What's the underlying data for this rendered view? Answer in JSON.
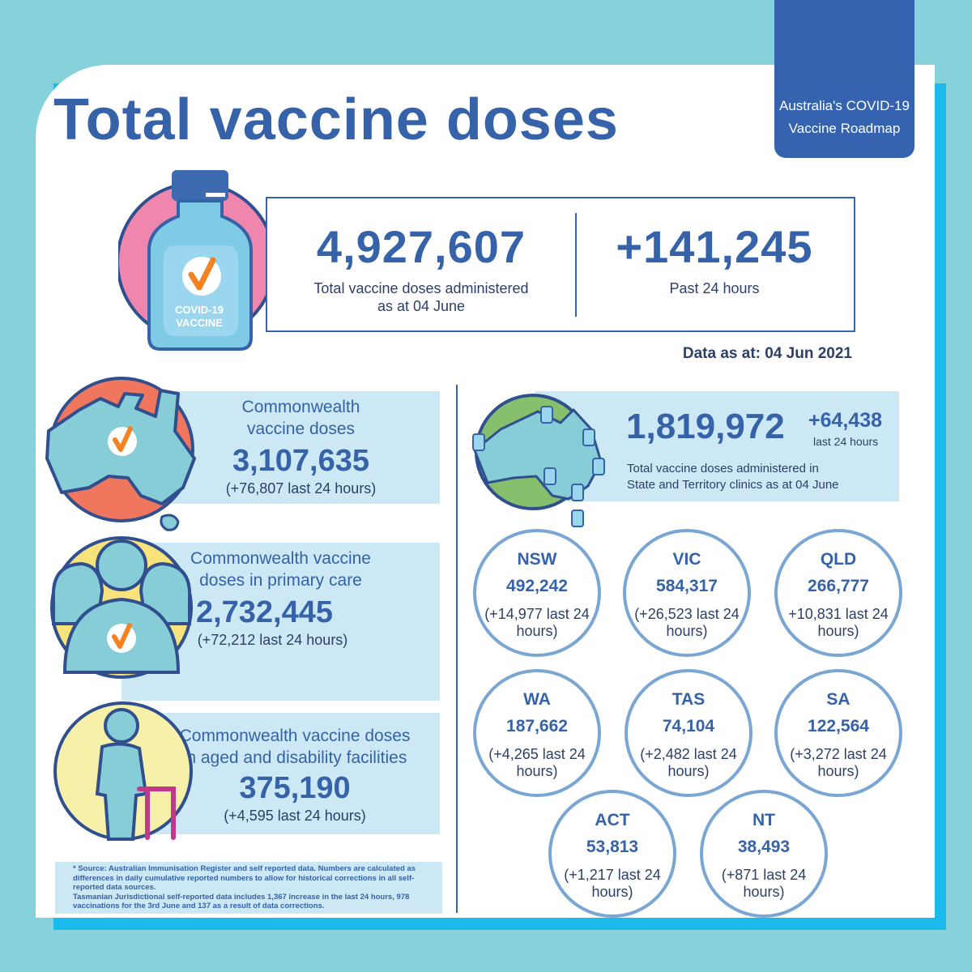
{
  "header": {
    "title": "Total vaccine doses",
    "roadmap_line1": "Australia's COVID-19",
    "roadmap_line2": "Vaccine Roadmap"
  },
  "vial": {
    "label_line1": "COVID-19",
    "label_line2": "VACCINE"
  },
  "totals": {
    "total_doses": "4,927,607",
    "total_caption_line1": "Total vaccine doses administered",
    "total_caption_line2": "as at 04 June",
    "past_24h": "+141,245",
    "past_24h_caption": "Past 24 hours",
    "data_as_at": "Data as at: 04 Jun 2021"
  },
  "commonwealth": {
    "label_line1": "Commonwealth",
    "label_line2": "vaccine doses",
    "value": "3,107,635",
    "change": "(+76,807 last 24 hours)"
  },
  "primary_care": {
    "label_line1": "Commonwealth vaccine",
    "label_line2": "doses in primary care",
    "value": "2,732,445",
    "change": "(+72,212 last 24 hours)"
  },
  "aged_care": {
    "label_line1": "Commonwealth vaccine doses",
    "label_line2": "in aged and disability facilities",
    "value": "375,190",
    "change": "(+4,595 last 24 hours)"
  },
  "state_clinics": {
    "value": "1,819,972",
    "change": "+64,438",
    "change_caption": "last 24 hours",
    "caption_line1": "Total vaccine doses administered in",
    "caption_line2": "State and Territory clinics as at 04 June"
  },
  "states": [
    {
      "name": "NSW",
      "value": "492,242",
      "change": "(+14,977 last 24 hours)"
    },
    {
      "name": "VIC",
      "value": "584,317",
      "change": "(+26,523 last 24 hours)"
    },
    {
      "name": "QLD",
      "value": "266,777",
      "change": "+10,831 last 24 hours)"
    },
    {
      "name": "WA",
      "value": "187,662",
      "change": "(+4,265 last 24 hours)"
    },
    {
      "name": "TAS",
      "value": "74,104",
      "change": "(+2,482 last 24 hours)"
    },
    {
      "name": "SA",
      "value": "122,564",
      "change": "(+3,272 last 24 hours)"
    },
    {
      "name": "ACT",
      "value": "53,813",
      "change": "(+1,217 last 24 hours)"
    },
    {
      "name": "NT",
      "value": "38,493",
      "change": "(+871 last 24 hours)"
    }
  ],
  "source": {
    "line1": "* Source: Australian Immunisation Register and self reported data. Numbers are calculated as differences in daily cumulative reported numbers to allow for historical corrections in all self-reported data sources.",
    "line2": "Tasmanian Jurisdictional self-reported data includes 1,367 increase in the last 24 hours, 978 vaccinations for the 3rd June and 137 as a result of data corrections."
  },
  "colors": {
    "background": "#86d1da",
    "accent_blue": "#3562a8",
    "panel_blue": "#cbe8f4",
    "shadow_blue": "#1bb9ec",
    "check_orange": "#f58220",
    "map_coral": "#f0775e",
    "vial_pink": "#ee86ad",
    "figure_teal": "#87cdd8"
  }
}
